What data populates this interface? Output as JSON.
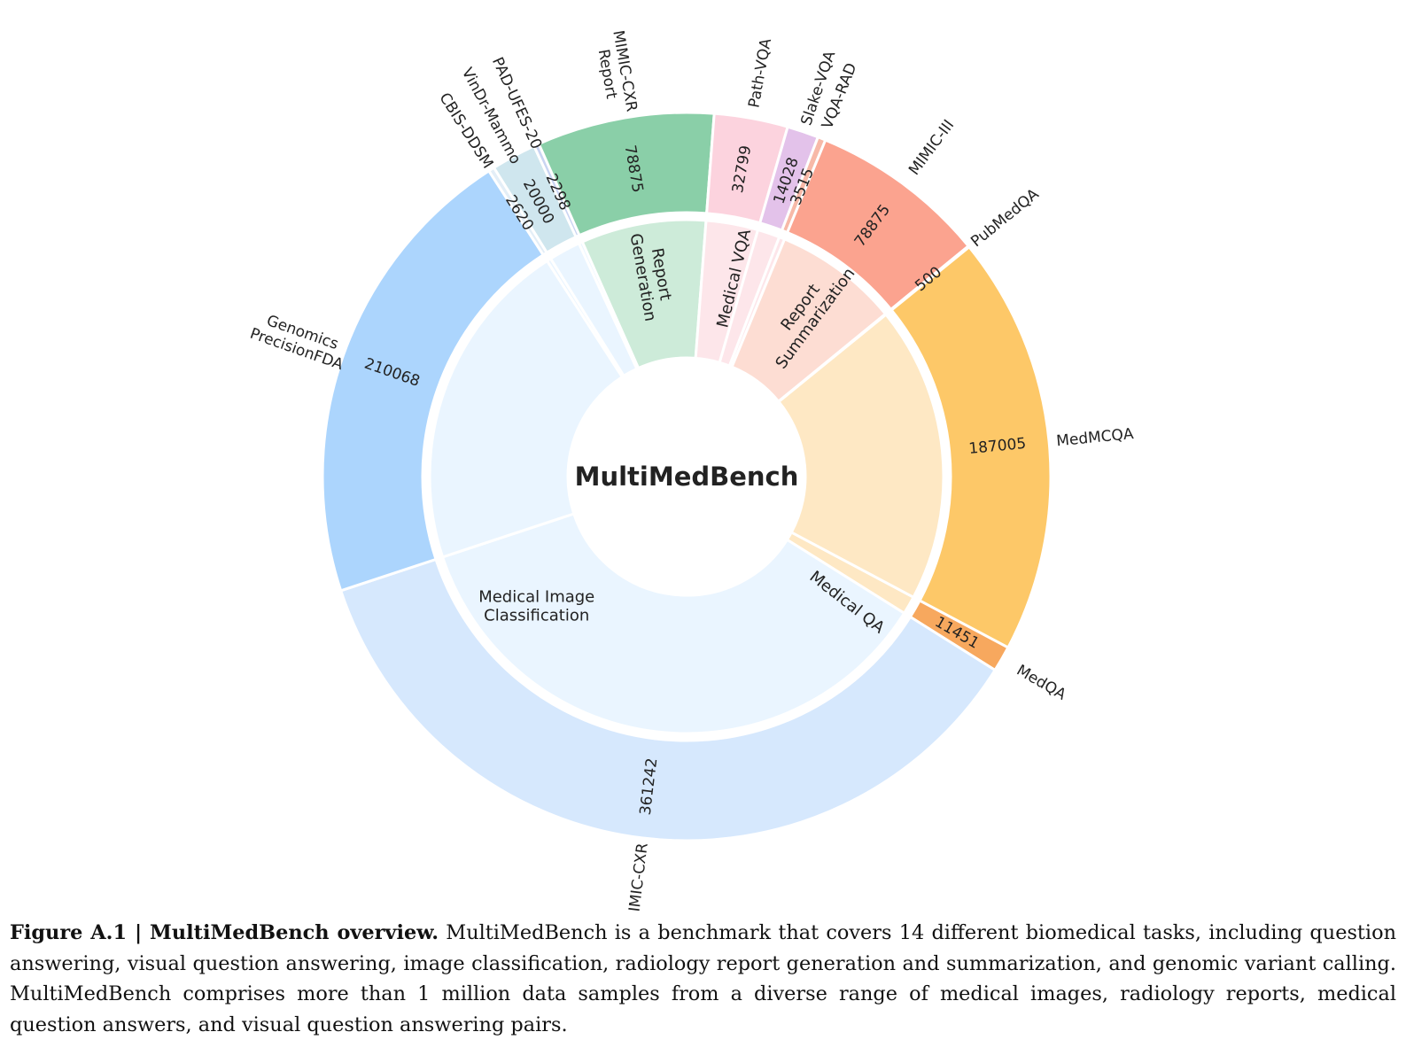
{
  "chart_data": {
    "type": "sunburst",
    "center_label": "MultiMedBench",
    "inner_ring": [
      {
        "task": "Medical Image Classification",
        "label_lines": [
          "Medical Image",
          "Classification"
        ],
        "color": "#eaf5ff"
      },
      {
        "task": "Report Generation",
        "label_lines": [
          "Report",
          "Generation"
        ],
        "color": "#cdebd9"
      },
      {
        "task": "Medical VQA",
        "label_lines": [
          "Medical VQA"
        ],
        "color": "#fde6ea"
      },
      {
        "task": "Report Summarization",
        "label_lines": [
          "Report",
          "Summarization"
        ],
        "color": "#fdddd3"
      },
      {
        "task": "Medical QA",
        "label_lines": [
          "Medical QA"
        ],
        "color": "#fee8c4"
      }
    ],
    "outer_ring": [
      {
        "dataset_lines": [
          "MedQA"
        ],
        "value": 11451,
        "value_label": "11451",
        "task": "Medical QA",
        "color": "#f7a85e"
      },
      {
        "dataset_lines": [
          "MIMIC-CXR"
        ],
        "value": 361242,
        "value_label": "361242",
        "task": "Medical Image Classification",
        "color": "#d6e8fd"
      },
      {
        "dataset_lines": [
          "Genomics",
          "PrecisionFDA"
        ],
        "value": 210068,
        "value_label": "210068",
        "task": "Medical Image Classification",
        "color": "#acd5fd"
      },
      {
        "dataset_lines": [
          "CBIS-DDSM"
        ],
        "value": 2620,
        "value_label": "2620",
        "task": "Medical Image Classification",
        "color": "#e3eef7"
      },
      {
        "dataset_lines": [
          "VinDr-Mammo"
        ],
        "value": 20000,
        "value_label": "20000",
        "task": "Medical Image Classification",
        "color": "#cfe6ee"
      },
      {
        "dataset_lines": [
          "PAD-UFES-20"
        ],
        "value": 2298,
        "value_label": "2298",
        "task": "Medical Image Classification",
        "color": "#c9d4f2"
      },
      {
        "dataset_lines": [
          "MIMIC-CXR",
          "Report"
        ],
        "value": 78875,
        "value_label": "78875",
        "task": "Report Generation",
        "color": "#8acfa8"
      },
      {
        "dataset_lines": [
          "Path-VQA"
        ],
        "value": 32799,
        "value_label": "32799",
        "task": "Medical VQA",
        "color": "#fcd3de"
      },
      {
        "dataset_lines": [
          "Slake-VQA"
        ],
        "value": 14028,
        "value_label": "14028",
        "task": "Medical VQA",
        "color": "#e3c2ea"
      },
      {
        "dataset_lines": [
          "VQA-RAD"
        ],
        "value": 3515,
        "value_label": "3515",
        "task": "Medical VQA",
        "color": "#f7b9a8"
      },
      {
        "dataset_lines": [
          "MIMIC-III"
        ],
        "value": 78875,
        "value_label": "78875",
        "task": "Report Summarization",
        "color": "#fba38f"
      },
      {
        "dataset_lines": [
          "PubMedQA"
        ],
        "value": 500,
        "value_label": "500",
        "task": "Medical QA",
        "color": "#f6d08a"
      },
      {
        "dataset_lines": [
          "MedMCQA"
        ],
        "value": 187005,
        "value_label": "187005",
        "task": "Medical QA",
        "color": "#fdc868"
      }
    ]
  },
  "caption": {
    "lead": "Figure A.1 | MultiMedBench overview.",
    "body": " MultiMedBench is a benchmark that covers 14 different biomedical tasks, including question answering, visual question answering, image classification, radiology report generation and summarization, and genomic variant calling. MultiMedBench comprises more than 1 million data samples from a diverse range of medical images, radiology reports, medical question answers, and visual question answering pairs."
  }
}
